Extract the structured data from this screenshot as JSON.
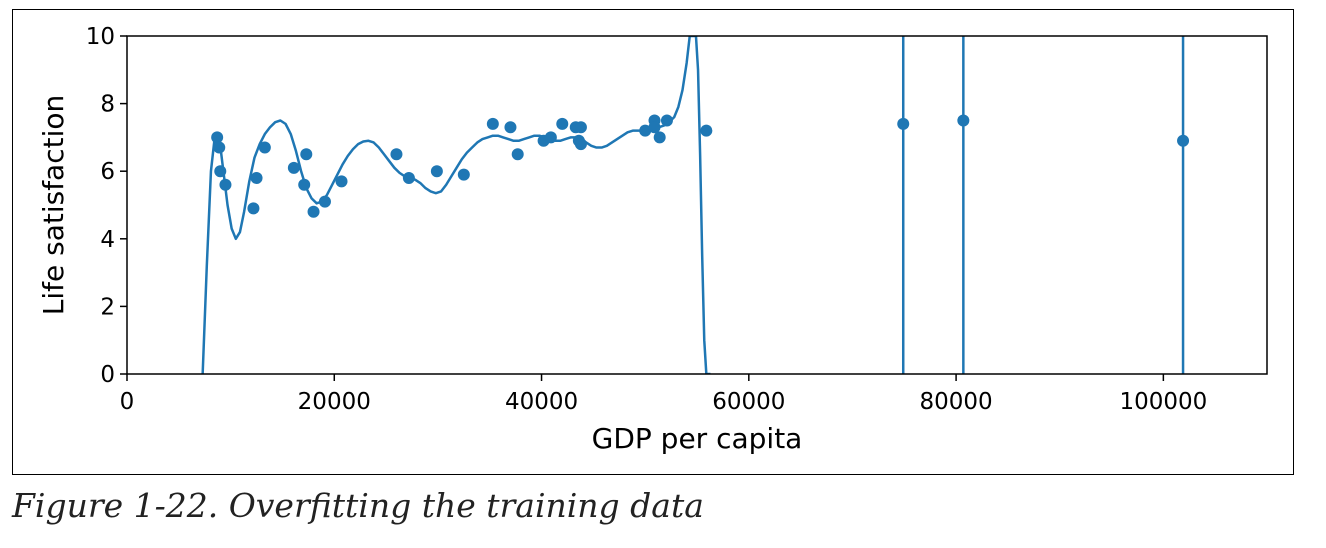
{
  "caption": "Figure 1-22. Overfitting the training data",
  "colors": {
    "series": "#1f77b4",
    "axis": "#000000"
  },
  "chart_data": {
    "type": "scatter",
    "title": "",
    "xlabel": "GDP per capita",
    "ylabel": "Life satisfaction",
    "xlim": [
      0,
      110000
    ],
    "ylim": [
      0,
      10
    ],
    "xticks": [
      0,
      20000,
      40000,
      60000,
      80000,
      100000
    ],
    "xtick_labels": [
      "0",
      "20000",
      "40000",
      "60000",
      "80000",
      "100000"
    ],
    "yticks": [
      0,
      2,
      4,
      6,
      8,
      10
    ],
    "ytick_labels": [
      "0",
      "2",
      "4",
      "6",
      "8",
      "10"
    ],
    "grid": false,
    "series": [
      {
        "kind": "points",
        "x": [
          8700,
          8900,
          9000,
          9500,
          12200,
          12500,
          13300,
          16100,
          17100,
          17300,
          18000,
          19100,
          20700,
          26000,
          27200,
          29900,
          32500,
          35300,
          37000,
          37700,
          40200,
          40900,
          42000,
          43300,
          43600,
          43800,
          43800,
          50000,
          50900,
          50900,
          51400,
          52100,
          55900,
          74900,
          80700,
          101900
        ],
        "y": [
          7.0,
          6.7,
          6.0,
          5.6,
          4.9,
          5.8,
          6.7,
          6.1,
          5.6,
          6.5,
          4.8,
          5.1,
          5.7,
          6.5,
          5.8,
          6.0,
          5.9,
          7.4,
          7.3,
          6.5,
          6.9,
          7.0,
          7.4,
          7.3,
          6.9,
          6.8,
          7.3,
          7.2,
          7.5,
          7.3,
          7.0,
          7.5,
          7.2,
          7.4,
          7.5,
          6.9
        ]
      },
      {
        "kind": "line",
        "x": [
          7300,
          7700,
          8100,
          8500,
          8900,
          9300,
          9700,
          10100,
          10500,
          10900,
          11300,
          11800,
          12300,
          12800,
          13300,
          13800,
          14300,
          14800,
          15300,
          15800,
          16300,
          16800,
          17300,
          17800,
          18300,
          18800,
          19300,
          19800,
          20300,
          20800,
          21300,
          21800,
          22300,
          22800,
          23300,
          23800,
          24300,
          24800,
          25300,
          25800,
          26300,
          26800,
          27300,
          27800,
          28300,
          28800,
          29300,
          29800,
          30300,
          30800,
          31300,
          31800,
          32300,
          32800,
          33300,
          33800,
          34300,
          34800,
          35300,
          35800,
          36300,
          36800,
          37300,
          37800,
          38300,
          38800,
          39300,
          39800,
          40300,
          40800,
          41300,
          41800,
          42300,
          42800,
          43300,
          43800,
          44300,
          44800,
          45300,
          45800,
          46300,
          46800,
          47300,
          47800,
          48300,
          48800,
          49300,
          49800,
          50300,
          50800,
          51300,
          51800,
          52300,
          52800,
          53200,
          53600,
          54000,
          54300,
          54600,
          54900,
          55100,
          55300,
          55500,
          55700,
          55900,
          56100,
          56300
        ],
        "y": [
          0.0,
          3.2,
          6.0,
          7.1,
          7.0,
          6.0,
          5.0,
          4.3,
          4.0,
          4.2,
          4.8,
          5.7,
          6.4,
          6.8,
          7.1,
          7.3,
          7.45,
          7.5,
          7.4,
          7.1,
          6.6,
          6.0,
          5.5,
          5.2,
          5.05,
          5.1,
          5.3,
          5.6,
          5.9,
          6.2,
          6.45,
          6.65,
          6.8,
          6.88,
          6.9,
          6.85,
          6.7,
          6.5,
          6.3,
          6.1,
          5.95,
          5.85,
          5.8,
          5.75,
          5.65,
          5.5,
          5.4,
          5.35,
          5.4,
          5.6,
          5.85,
          6.1,
          6.35,
          6.55,
          6.7,
          6.85,
          6.95,
          7.0,
          7.05,
          7.05,
          7.0,
          6.95,
          6.9,
          6.9,
          6.95,
          7.0,
          7.05,
          7.05,
          7.0,
          6.95,
          6.9,
          6.9,
          6.95,
          7.0,
          7.0,
          6.95,
          6.85,
          6.75,
          6.7,
          6.7,
          6.75,
          6.85,
          6.95,
          7.05,
          7.15,
          7.2,
          7.2,
          7.2,
          7.2,
          7.25,
          7.3,
          7.35,
          7.45,
          7.6,
          7.9,
          8.4,
          9.2,
          10.0,
          10.0,
          10.0,
          9.0,
          6.5,
          3.5,
          1.0,
          0.0,
          0.0,
          0.0
        ]
      }
    ],
    "vertical_lines_x": [
      74900,
      80700,
      101900
    ]
  }
}
